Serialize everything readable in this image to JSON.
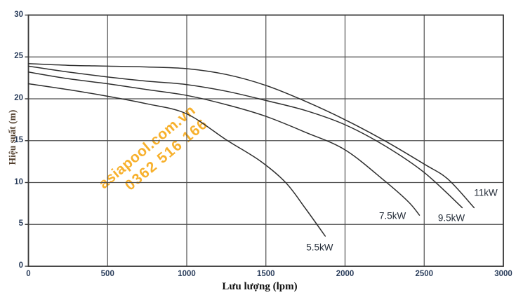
{
  "chart_data": {
    "type": "line",
    "title": "",
    "xlabel": "Lưu lượng (lpm)",
    "ylabel": "Hiệu suất (m)",
    "xlim": [
      0,
      3000
    ],
    "ylim": [
      0,
      30
    ],
    "x_ticks": [
      0,
      500,
      1000,
      1500,
      2000,
      2500,
      3000
    ],
    "y_ticks": [
      0,
      5,
      10,
      15,
      20,
      25,
      30
    ],
    "grid": true,
    "legend_position": "inline-labels",
    "series": [
      {
        "name": "5.5kW",
        "points": [
          [
            0,
            21.8
          ],
          [
            250,
            21.1
          ],
          [
            500,
            20.3
          ],
          [
            750,
            19.4
          ],
          [
            1000,
            18.2
          ],
          [
            1250,
            15.1
          ],
          [
            1462,
            12.6
          ],
          [
            1625,
            10.0
          ],
          [
            1750,
            6.9
          ],
          [
            1875,
            3.6
          ]
        ]
      },
      {
        "name": "7.5kW",
        "points": [
          [
            0,
            23.2
          ],
          [
            250,
            22.4
          ],
          [
            500,
            21.8
          ],
          [
            750,
            21.1
          ],
          [
            1000,
            20.4
          ],
          [
            1250,
            19.3
          ],
          [
            1500,
            17.9
          ],
          [
            1750,
            16.0
          ],
          [
            2000,
            13.9
          ],
          [
            2250,
            10.2
          ],
          [
            2400,
            7.7
          ],
          [
            2470,
            6.1
          ]
        ]
      },
      {
        "name": "9.5kW",
        "points": [
          [
            0,
            23.9
          ],
          [
            250,
            23.2
          ],
          [
            500,
            22.6
          ],
          [
            750,
            22.1
          ],
          [
            1000,
            21.7
          ],
          [
            1250,
            20.9
          ],
          [
            1500,
            19.8
          ],
          [
            1750,
            18.6
          ],
          [
            2000,
            16.9
          ],
          [
            2250,
            14.4
          ],
          [
            2500,
            11.2
          ],
          [
            2740,
            7.0
          ]
        ]
      },
      {
        "name": "11kW",
        "points": [
          [
            0,
            24.2
          ],
          [
            250,
            24.0
          ],
          [
            500,
            23.9
          ],
          [
            750,
            23.8
          ],
          [
            1000,
            23.6
          ],
          [
            1250,
            22.9
          ],
          [
            1500,
            21.6
          ],
          [
            1750,
            19.7
          ],
          [
            2000,
            17.5
          ],
          [
            2250,
            15.0
          ],
          [
            2500,
            12.2
          ],
          [
            2650,
            10.4
          ],
          [
            2815,
            7.0
          ]
        ]
      }
    ],
    "annotations": [
      {
        "text": "5.5kW",
        "x": 1840,
        "y": 2.3
      },
      {
        "text": "7.5kW",
        "x": 2300,
        "y": 6.0
      },
      {
        "text": "9.5kW",
        "x": 2672,
        "y": 5.8
      },
      {
        "text": "11kW",
        "x": 2889,
        "y": 8.8
      }
    ]
  },
  "watermark": {
    "line1": "asiapool.com.vn",
    "line2": "0362 516 166"
  },
  "colors": {
    "watermark": "#F7AB1D",
    "curve": "#2e2e2e",
    "grid": "#4f4f4f",
    "border": "#3a3a3a",
    "tick_label": "#2b3e5c",
    "y_axis_title": "#53402e",
    "x_axis_title": "#111111"
  }
}
